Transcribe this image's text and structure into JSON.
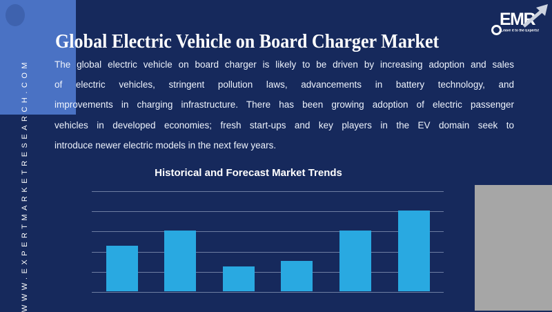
{
  "sidebar": {
    "url": "WWW.EXPERTMARKETRESEARCH.COM"
  },
  "header": {
    "title": "Global Electric Vehicle on Board Charger Market"
  },
  "intro": {
    "lines": [
      "The global electric vehicle on board charger is likely to be driven by increasing adoption and sales",
      "of electric vehicles, stringent pollution laws, advancements in battery technology, and",
      "improvements in charging infrastructure. There has been growing adoption of electric passenger",
      "vehicles in developed economies; fresh start-ups and key players in the EV domain seek to",
      "introduce newer electric models in the next few years."
    ]
  },
  "logo": {
    "text": "EMR",
    "tagline": "Leave it to the Experts!",
    "arrow_icon": "growth-arrow-icon"
  },
  "chart_data": {
    "type": "bar",
    "title": "Historical and Forecast Market Trends",
    "categories": [
      "",
      "",
      "",
      "",
      "",
      ""
    ],
    "values": [
      2.26,
      3.0,
      1.23,
      1.5,
      3.0,
      4.0
    ],
    "ylim": [
      0,
      5
    ],
    "gridline_count": 6,
    "grid": "horizontal-only",
    "xlabel": "",
    "ylabel": "",
    "tick_labels_visible": false,
    "legend": "none",
    "bar_color": "#29a9e1"
  },
  "colors": {
    "background": "#16295c",
    "side_band": "#4a72c4",
    "bar": "#29a9e1",
    "gridline": "#8c9bb9",
    "gray_box": "#a6a6a6",
    "text": "#ffffff"
  }
}
